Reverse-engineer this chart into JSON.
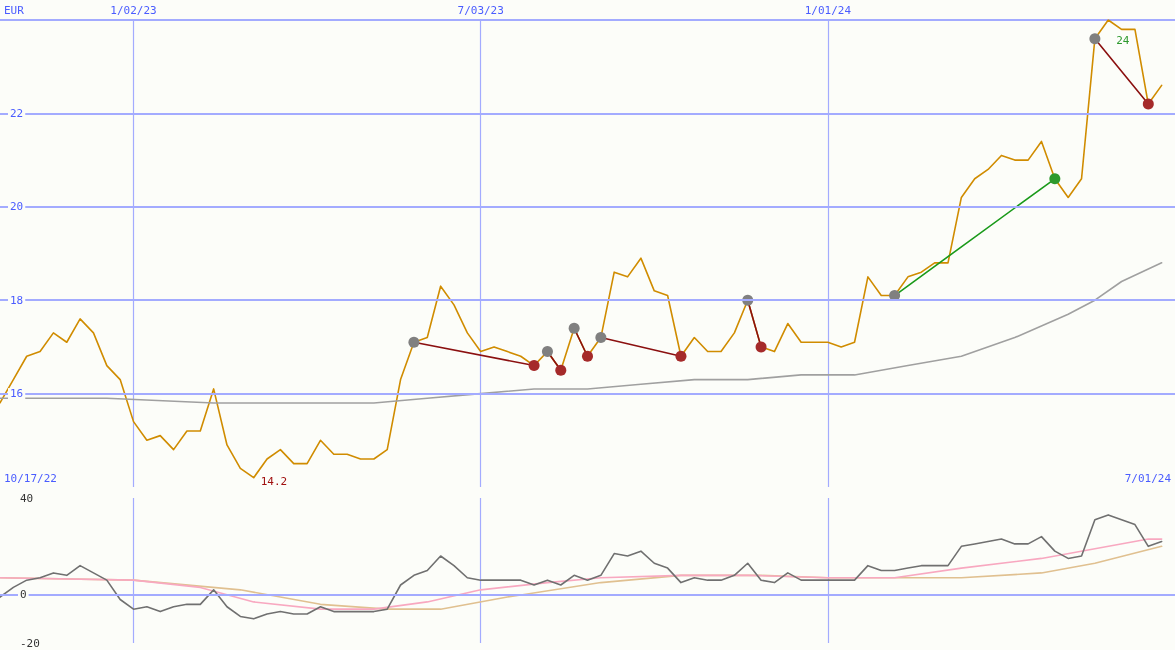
{
  "chart_data": [
    {
      "type": "line",
      "ylabel": "EUR",
      "grid": true,
      "marker": "none",
      "xlim": [
        "2022-10-24",
        "2024-07-01"
      ],
      "ylim": [
        14,
        24
      ],
      "yticks": [
        16,
        18,
        20,
        22
      ],
      "xticks": [
        {
          "value": "2023-01-02",
          "label": "1/02/23"
        },
        {
          "value": "2023-07-03",
          "label": "7/03/23"
        },
        {
          "value": "2024-01-01",
          "label": "1/01/24"
        }
      ],
      "x": [
        "2022-10-24",
        "2022-10-31",
        "2022-11-07",
        "2022-11-14",
        "2022-11-21",
        "2022-11-28",
        "2022-12-05",
        "2022-12-12",
        "2022-12-19",
        "2022-12-26",
        "2023-01-02",
        "2023-01-09",
        "2023-01-16",
        "2023-01-23",
        "2023-01-30",
        "2023-02-06",
        "2023-02-13",
        "2023-02-20",
        "2023-02-27",
        "2023-03-06",
        "2023-03-13",
        "2023-03-20",
        "2023-03-27",
        "2023-04-03",
        "2023-04-10",
        "2023-04-17",
        "2023-04-24",
        "2023-05-01",
        "2023-05-08",
        "2023-05-15",
        "2023-05-22",
        "2023-05-29",
        "2023-06-05",
        "2023-06-12",
        "2023-06-19",
        "2023-06-26",
        "2023-07-03",
        "2023-07-10",
        "2023-07-17",
        "2023-07-24",
        "2023-07-31",
        "2023-08-07",
        "2023-08-14",
        "2023-08-21",
        "2023-08-28",
        "2023-09-04",
        "2023-09-11",
        "2023-09-18",
        "2023-09-25",
        "2023-10-02",
        "2023-10-09",
        "2023-10-16",
        "2023-10-23",
        "2023-10-30",
        "2023-11-06",
        "2023-11-13",
        "2023-11-20",
        "2023-11-27",
        "2023-12-04",
        "2023-12-11",
        "2023-12-18",
        "2023-12-25",
        "2024-01-01",
        "2024-01-08",
        "2024-01-15",
        "2024-01-22",
        "2024-01-29",
        "2024-02-05",
        "2024-02-12",
        "2024-02-19",
        "2024-02-26",
        "2024-03-04",
        "2024-03-11",
        "2024-03-18",
        "2024-03-25",
        "2024-04-01",
        "2024-04-08",
        "2024-04-15",
        "2024-04-22",
        "2024-04-29",
        "2024-05-06",
        "2024-05-13",
        "2024-05-20",
        "2024-05-27",
        "2024-06-03",
        "2024-06-10",
        "2024-06-17",
        "2024-06-24"
      ],
      "series": [
        {
          "color": "#d08c00",
          "values": [
            15.8,
            16.3,
            16.8,
            16.9,
            17.3,
            17.1,
            17.6,
            17.3,
            16.6,
            16.3,
            15.4,
            15.0,
            15.1,
            14.8,
            15.2,
            15.2,
            16.1,
            14.9,
            14.4,
            14.2,
            14.6,
            14.8,
            14.5,
            14.5,
            15.0,
            14.7,
            14.7,
            14.6,
            14.6,
            14.8,
            16.3,
            17.1,
            17.2,
            18.3,
            17.9,
            17.3,
            16.9,
            17.0,
            16.9,
            16.8,
            16.6,
            16.9,
            16.5,
            17.4,
            16.8,
            17.2,
            18.6,
            18.5,
            18.9,
            18.2,
            18.1,
            16.8,
            17.2,
            16.9,
            16.9,
            17.3,
            18.0,
            17.0,
            16.9,
            17.5,
            17.1,
            17.1,
            17.1,
            17.0,
            17.1,
            18.5,
            18.1,
            18.1,
            18.5,
            18.6,
            18.8,
            18.8,
            20.2,
            20.6,
            20.8,
            21.1,
            21.0,
            21.0,
            21.4,
            20.6,
            20.2,
            20.6,
            23.6,
            24.0,
            23.8,
            23.8,
            22.2,
            22.6
          ]
        },
        {
          "color": "#a0a0a0",
          "x": [
            "2022-10-24",
            "2022-12-19",
            "2023-02-13",
            "2023-04-10",
            "2023-05-08",
            "2023-06-05",
            "2023-07-03",
            "2023-07-31",
            "2023-08-28",
            "2023-09-25",
            "2023-10-23",
            "2023-11-20",
            "2023-12-18",
            "2024-01-15",
            "2024-02-12",
            "2024-03-11",
            "2024-04-08",
            "2024-05-06",
            "2024-05-20",
            "2024-06-03",
            "2024-06-24"
          ],
          "values": [
            15.9,
            15.9,
            15.8,
            15.8,
            15.8,
            15.9,
            16.0,
            16.1,
            16.1,
            16.2,
            16.3,
            16.3,
            16.4,
            16.4,
            16.6,
            16.8,
            17.2,
            17.7,
            18.0,
            18.4,
            18.8
          ]
        },
        {
          "color": "#8b1010",
          "marker": "circle",
          "x": [
            "2023-05-29",
            "2023-07-31"
          ],
          "values": [
            17.1,
            16.6
          ],
          "colors": [
            "#808080",
            "#a52a2a"
          ]
        },
        {
          "color": "#8b1010",
          "marker": "circle",
          "x": [
            "2023-08-07",
            "2023-08-14"
          ],
          "values": [
            16.9,
            16.5
          ],
          "colors": [
            "#808080",
            "#a52a2a"
          ]
        },
        {
          "color": "#8b1010",
          "marker": "circle",
          "x": [
            "2023-08-21",
            "2023-08-28"
          ],
          "values": [
            17.4,
            16.8
          ],
          "colors": [
            "#808080",
            "#a52a2a"
          ]
        },
        {
          "color": "#8b1010",
          "marker": "circle",
          "x": [
            "2023-09-04",
            "2023-10-16"
          ],
          "values": [
            17.2,
            16.8
          ],
          "colors": [
            "#808080",
            "#a52a2a"
          ]
        },
        {
          "color": "#8b1010",
          "marker": "circle",
          "x": [
            "2023-11-20",
            "2023-11-27"
          ],
          "values": [
            18.0,
            17.0
          ],
          "colors": [
            "#808080",
            "#a52a2a"
          ]
        },
        {
          "color": "#1a9a1a",
          "marker": "circle",
          "x": [
            "2024-02-05",
            "2024-04-29"
          ],
          "values": [
            18.1,
            20.6
          ],
          "colors": [
            "#808080",
            "#2e9a2e"
          ]
        },
        {
          "color": "#8b1010",
          "marker": "circle",
          "x": [
            "2024-05-20",
            "2024-06-17"
          ],
          "values": [
            23.6,
            22.2
          ],
          "colors": [
            "#808080",
            "#a52a2a"
          ]
        }
      ],
      "annotations": [
        {
          "text": "14.2",
          "x": "2023-03-06",
          "y": 14.2
        },
        {
          "text": "24",
          "x": "2024-05-27",
          "y": 24.0
        },
        "10/17/22",
        "7/01/24"
      ]
    },
    {
      "type": "line",
      "grid": "x",
      "marker": "none",
      "tick_labels": "y",
      "ref_lines": [
        {
          "axis": "y",
          "value": 0,
          "color": "#a3abff"
        }
      ],
      "xlim": [
        "2022-10-24",
        "2024-07-01"
      ],
      "ylim": [
        -20,
        40
      ],
      "yticks": [
        -20,
        0,
        40
      ],
      "xticks": [
        {
          "value": "2023-01-02",
          "label": null
        },
        {
          "value": "2023-07-03",
          "label": null
        },
        {
          "value": "2024-01-01",
          "label": null
        }
      ],
      "x": [
        "2022-10-24",
        "2022-10-31",
        "2022-11-07",
        "2022-11-14",
        "2022-11-21",
        "2022-11-28",
        "2022-12-05",
        "2022-12-12",
        "2022-12-19",
        "2022-12-26",
        "2023-01-02",
        "2023-01-09",
        "2023-01-16",
        "2023-01-23",
        "2023-01-30",
        "2023-02-06",
        "2023-02-13",
        "2023-02-20",
        "2023-02-27",
        "2023-03-06",
        "2023-03-13",
        "2023-03-20",
        "2023-03-27",
        "2023-04-03",
        "2023-04-10",
        "2023-04-17",
        "2023-04-24",
        "2023-05-01",
        "2023-05-08",
        "2023-05-15",
        "2023-05-22",
        "2023-05-29",
        "2023-06-05",
        "2023-06-12",
        "2023-06-19",
        "2023-06-26",
        "2023-07-03",
        "2023-07-10",
        "2023-07-17",
        "2023-07-24",
        "2023-07-31",
        "2023-08-07",
        "2023-08-14",
        "2023-08-21",
        "2023-08-28",
        "2023-09-04",
        "2023-09-11",
        "2023-09-18",
        "2023-09-25",
        "2023-10-02",
        "2023-10-09",
        "2023-10-16",
        "2023-10-23",
        "2023-10-30",
        "2023-11-06",
        "2023-11-13",
        "2023-11-20",
        "2023-11-27",
        "2023-12-04",
        "2023-12-11",
        "2023-12-18",
        "2023-12-25",
        "2024-01-01",
        "2024-01-08",
        "2024-01-15",
        "2024-01-22",
        "2024-01-29",
        "2024-02-05",
        "2024-02-12",
        "2024-02-19",
        "2024-02-26",
        "2024-03-04",
        "2024-03-11",
        "2024-03-18",
        "2024-03-25",
        "2024-04-01",
        "2024-04-08",
        "2024-04-15",
        "2024-04-22",
        "2024-04-29",
        "2024-05-06",
        "2024-05-13",
        "2024-05-20",
        "2024-05-27",
        "2024-06-03",
        "2024-06-10",
        "2024-06-17",
        "2024-06-24"
      ],
      "series": [
        {
          "color": "#e0c090",
          "x": [
            "2022-10-24",
            "2023-01-02",
            "2023-02-27",
            "2023-04-10",
            "2023-05-15",
            "2023-06-12",
            "2023-07-17",
            "2023-09-04",
            "2023-10-16",
            "2023-11-27",
            "2024-01-01",
            "2024-01-29",
            "2024-03-11",
            "2024-04-22",
            "2024-05-20",
            "2024-06-24"
          ],
          "values": [
            7,
            6,
            2,
            -4,
            -6,
            -6,
            -1,
            5,
            8,
            8,
            7,
            7,
            7,
            9,
            13,
            20
          ]
        },
        {
          "color": "#f8a8c0",
          "x": [
            "2022-10-24",
            "2023-01-02",
            "2023-02-06",
            "2023-03-06",
            "2023-04-10",
            "2023-05-08",
            "2023-06-05",
            "2023-07-03",
            "2023-08-07",
            "2023-09-04",
            "2023-10-16",
            "2023-11-20",
            "2024-01-01",
            "2024-02-05",
            "2024-03-11",
            "2024-04-22",
            "2024-05-20",
            "2024-06-17",
            "2024-06-24"
          ],
          "values": [
            7,
            6,
            3,
            -3,
            -6,
            -6,
            -3,
            2,
            5,
            7,
            8,
            8,
            7,
            7,
            11,
            15,
            19,
            23,
            23
          ]
        },
        {
          "color": "#707070",
          "values": [
            -1,
            3,
            6,
            7,
            9,
            8,
            12,
            9,
            6,
            -2,
            -6,
            -5,
            -7,
            -5,
            -4,
            -4,
            2,
            -5,
            -9,
            -10,
            -8,
            -7,
            -8,
            -8,
            -5,
            -7,
            -7,
            -7,
            -7,
            -6,
            4,
            8,
            10,
            16,
            12,
            7,
            6,
            6,
            6,
            6,
            4,
            6,
            4,
            8,
            6,
            8,
            17,
            16,
            18,
            13,
            11,
            5,
            7,
            6,
            6,
            8,
            13,
            6,
            5,
            9,
            6,
            6,
            6,
            6,
            6,
            12,
            10,
            10,
            11,
            12,
            12,
            12,
            20,
            21,
            22,
            23,
            21,
            21,
            24,
            18,
            15,
            16,
            31,
            33,
            31,
            29,
            20,
            22
          ]
        }
      ]
    }
  ]
}
